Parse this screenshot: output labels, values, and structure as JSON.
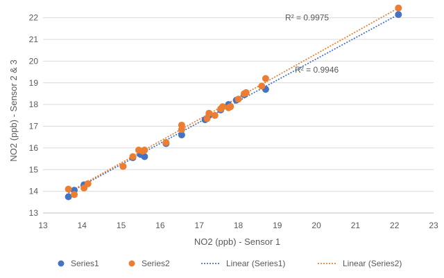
{
  "chart_data": {
    "type": "scatter",
    "title": "",
    "xlabel": "NO2 (ppb) - Sensor 1",
    "ylabel": "NO2 (ppb) - Sensor 2 & 3",
    "xlim": [
      13,
      23
    ],
    "ylim": [
      13,
      22.5
    ],
    "x_ticks": [
      13,
      14,
      15,
      16,
      17,
      18,
      19,
      20,
      21,
      22,
      23
    ],
    "y_ticks": [
      13,
      14,
      15,
      16,
      17,
      18,
      19,
      20,
      21,
      22
    ],
    "grid": "horizontal",
    "legend_position": "bottom",
    "series": [
      {
        "name": "Series1",
        "color": "#4472C4",
        "points": [
          [
            13.65,
            13.75
          ],
          [
            13.8,
            14.05
          ],
          [
            14.05,
            14.3
          ],
          [
            15.05,
            15.15
          ],
          [
            15.3,
            15.55
          ],
          [
            15.5,
            15.7
          ],
          [
            15.6,
            15.6
          ],
          [
            15.55,
            15.85
          ],
          [
            16.15,
            16.2
          ],
          [
            16.55,
            16.6
          ],
          [
            17.15,
            17.3
          ],
          [
            17.25,
            17.5
          ],
          [
            17.55,
            17.75
          ],
          [
            17.75,
            18.0
          ],
          [
            17.95,
            18.2
          ],
          [
            18.15,
            18.45
          ],
          [
            18.7,
            18.7
          ],
          [
            22.1,
            22.15
          ]
        ]
      },
      {
        "name": "Series2",
        "color": "#ED7D31",
        "points": [
          [
            13.65,
            14.1
          ],
          [
            13.8,
            13.85
          ],
          [
            14.05,
            14.15
          ],
          [
            14.15,
            14.35
          ],
          [
            15.05,
            15.15
          ],
          [
            15.3,
            15.6
          ],
          [
            15.45,
            15.9
          ],
          [
            15.55,
            15.85
          ],
          [
            15.6,
            15.9
          ],
          [
            16.15,
            16.25
          ],
          [
            16.55,
            17.05
          ],
          [
            16.55,
            16.85
          ],
          [
            17.2,
            17.35
          ],
          [
            17.25,
            17.6
          ],
          [
            17.4,
            17.5
          ],
          [
            17.55,
            17.8
          ],
          [
            17.6,
            17.9
          ],
          [
            17.75,
            17.85
          ],
          [
            17.8,
            17.9
          ],
          [
            18.0,
            18.25
          ],
          [
            18.15,
            18.5
          ],
          [
            18.2,
            18.55
          ],
          [
            18.6,
            18.85
          ],
          [
            18.7,
            19.2
          ],
          [
            22.1,
            22.45
          ]
        ]
      }
    ],
    "trendlines": [
      {
        "name": "Linear (Series1)",
        "color": "#4472C4",
        "from": [
          13.65,
          13.92
        ],
        "to": [
          22.1,
          22.15
        ],
        "r2_label": "R² = 0.9946",
        "r2_anchor": [
          19.45,
          19.6
        ]
      },
      {
        "name": "Linear (Series2)",
        "color": "#ED7D31",
        "from": [
          13.65,
          13.95
        ],
        "to": [
          22.1,
          22.45
        ],
        "r2_label": "R² = 0.9975",
        "r2_anchor": [
          19.2,
          22.0
        ]
      }
    ],
    "legend": [
      {
        "label": "Series1",
        "kind": "marker",
        "color": "#4472C4"
      },
      {
        "label": "Series2",
        "kind": "marker",
        "color": "#ED7D31"
      },
      {
        "label": "Linear (Series1)",
        "kind": "line",
        "color": "#4472C4"
      },
      {
        "label": "Linear (Series2)",
        "kind": "line",
        "color": "#ED7D31"
      }
    ]
  }
}
